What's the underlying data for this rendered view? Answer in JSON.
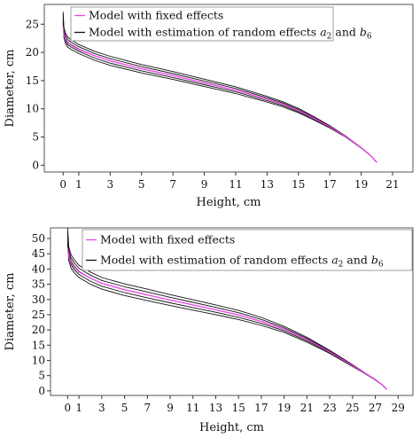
{
  "chart_data": [
    {
      "type": "line",
      "xlabel": "Height, cm",
      "ylabel": "Diameter, cm",
      "xlim": [
        -1.2,
        22.3
      ],
      "ylim": [
        -1.2,
        28.5
      ],
      "xticks": [
        0,
        1,
        3,
        5,
        7,
        9,
        11,
        13,
        15,
        17,
        19,
        21
      ],
      "yticks": [
        0,
        5,
        10,
        15,
        20,
        25
      ],
      "grid": false,
      "legend": {
        "position": "top-left",
        "entries": [
          {
            "label": "Model with fixed effects",
            "color": "#ee44ee"
          },
          {
            "label": "Model with estimation of random effects ",
            "math_a": "a",
            "sub_a": "2",
            "mid": " and ",
            "math_b": "b",
            "sub_b": "6",
            "color": "#111111"
          }
        ]
      },
      "series": [
        {
          "name": "Model with fixed effects",
          "color": "#ee44ee",
          "x": [
            0,
            0.05,
            0.15,
            0.3,
            0.5,
            1,
            2,
            3,
            5,
            7,
            9,
            11,
            13,
            14,
            15,
            16,
            17,
            18,
            19,
            19.6,
            20
          ],
          "y": [
            24.5,
            23.2,
            22.3,
            21.7,
            21.3,
            20.5,
            19.4,
            18.5,
            17.1,
            15.9,
            14.6,
            13.3,
            11.7,
            10.8,
            9.7,
            8.3,
            6.8,
            5.1,
            3.1,
            1.7,
            0.5
          ]
        },
        {
          "name": "Model with estimation of random effects a2 and b6",
          "color": "#111111",
          "spread": [
            -1,
            -0.5,
            0,
            0.5,
            1
          ],
          "x": [
            0,
            0.05,
            0.15,
            0.3,
            0.5,
            1,
            2,
            3,
            5,
            7,
            9,
            11,
            13,
            14,
            15,
            16,
            17,
            18,
            19,
            19.6,
            20
          ],
          "y": [
            26.3,
            23.6,
            22.5,
            21.8,
            21.4,
            20.6,
            19.4,
            18.5,
            17.1,
            15.9,
            14.6,
            13.3,
            11.7,
            10.8,
            9.7,
            8.3,
            6.8,
            5.1,
            3.1,
            1.7,
            0.5
          ],
          "offset": [
            0.9,
            0.9,
            0.9,
            0.9,
            0.85,
            0.8,
            0.8,
            0.8,
            0.75,
            0.7,
            0.65,
            0.6,
            0.5,
            0.45,
            0.4,
            0.3,
            0.2,
            0.1,
            0.05,
            0,
            0
          ]
        }
      ]
    },
    {
      "type": "line",
      "xlabel": "Height, cm",
      "ylabel": "Diameter, cm",
      "xlim": [
        -1.5,
        30.3
      ],
      "ylim": [
        -1.5,
        53.5
      ],
      "xticks": [
        0,
        1,
        3,
        5,
        7,
        9,
        11,
        13,
        15,
        17,
        19,
        21,
        23,
        25,
        27,
        29
      ],
      "yticks": [
        0,
        5,
        10,
        15,
        20,
        25,
        30,
        35,
        40,
        45,
        50
      ],
      "grid": false,
      "legend": {
        "position": "top-left",
        "entries": [
          {
            "label": "Model with fixed effects",
            "color": "#ee44ee"
          },
          {
            "label": "Model with estimation of random effects ",
            "math_a": "a",
            "sub_a": "2",
            "mid": " and ",
            "math_b": "b",
            "sub_b": "6",
            "color": "#111111"
          }
        ]
      },
      "series": [
        {
          "name": "Model with fixed effects",
          "color": "#ee44ee",
          "x": [
            0,
            0.1,
            0.3,
            0.6,
            1,
            2,
            3,
            5,
            7,
            9,
            11,
            13,
            15,
            17,
            19,
            21,
            23,
            25,
            26,
            27,
            27.6,
            28
          ],
          "y": [
            47,
            44,
            42,
            40.5,
            39,
            37,
            35.3,
            33.2,
            31.5,
            29.8,
            28.2,
            26.6,
            24.9,
            22.8,
            20.2,
            16.8,
            12.8,
            8.3,
            6,
            3.6,
            2,
            0.5
          ]
        },
        {
          "name": "Model with estimation of random effects a2 and b6",
          "color": "#111111",
          "spread": [
            -1,
            -0.5,
            0,
            0.5,
            1
          ],
          "x": [
            0,
            0.1,
            0.3,
            0.6,
            1,
            2,
            3,
            5,
            7,
            9,
            11,
            13,
            15,
            17,
            19,
            21,
            23,
            25,
            26,
            27,
            27.6,
            28
          ],
          "y": [
            51,
            45,
            42.5,
            40.8,
            39.2,
            37,
            35.3,
            33.2,
            31.5,
            29.8,
            28.2,
            26.6,
            24.9,
            22.8,
            20.2,
            16.8,
            12.8,
            8.3,
            6,
            3.6,
            2,
            0.5
          ],
          "offset": [
            2.5,
            2.3,
            2.2,
            2.1,
            2,
            2,
            1.9,
            1.9,
            1.9,
            1.8,
            1.7,
            1.6,
            1.5,
            1.3,
            1.0,
            0.8,
            0.5,
            0.3,
            0.15,
            0.1,
            0,
            0
          ]
        }
      ]
    }
  ]
}
